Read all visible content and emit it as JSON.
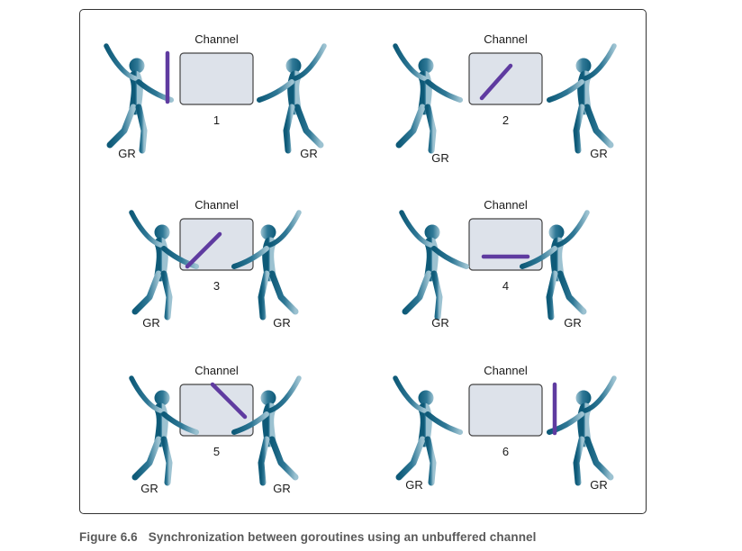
{
  "caption": {
    "figure_number": "Figure 6.6",
    "text": "Synchronization between goroutines using an unbuffered channel"
  },
  "colors": {
    "figure_dark": "#0e5a78",
    "figure_light": "#8ab4c6",
    "channel_fill": "#dde2ea",
    "channel_stroke": "#444444",
    "data_bar": "#5f3ba0"
  },
  "panels": [
    {
      "channel_label": "Channel",
      "step": "1",
      "left_label": "GR",
      "right_label": "GR",
      "bar_state": "left-holding"
    },
    {
      "channel_label": "Channel",
      "step": "2",
      "left_label": "GR",
      "right_label": "GR",
      "bar_state": "entering-channel"
    },
    {
      "channel_label": "Channel",
      "step": "3",
      "left_label": "GR",
      "right_label": "GR",
      "bar_state": "in-channel"
    },
    {
      "channel_label": "Channel",
      "step": "4",
      "left_label": "GR",
      "right_label": "GR",
      "bar_state": "shared-both"
    },
    {
      "channel_label": "Channel",
      "step": "5",
      "left_label": "GR",
      "right_label": "GR",
      "bar_state": "leaving-channel"
    },
    {
      "channel_label": "Channel",
      "step": "6",
      "left_label": "GR",
      "right_label": "GR",
      "bar_state": "right-holding"
    }
  ]
}
